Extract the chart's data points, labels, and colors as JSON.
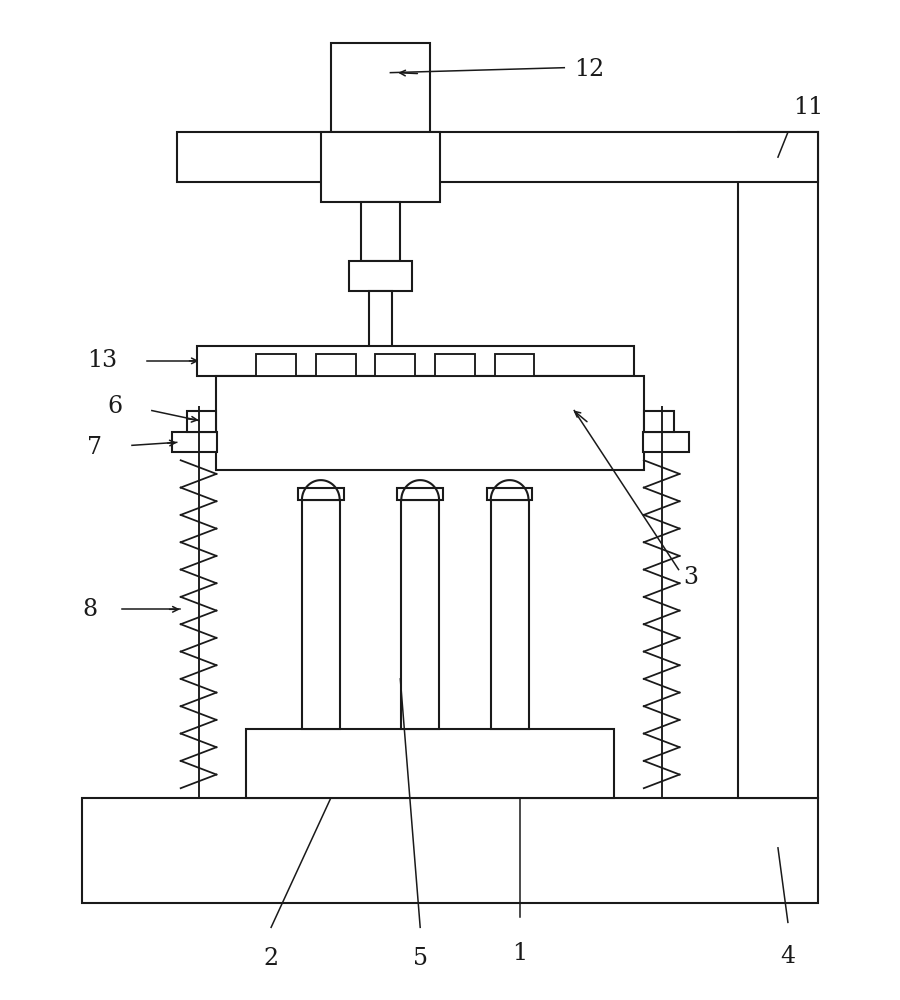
{
  "bg_color": "#ffffff",
  "line_color": "#1a1a1a",
  "line_width": 1.5,
  "fig_width": 9.0,
  "fig_height": 10.0,
  "font_size": 17
}
